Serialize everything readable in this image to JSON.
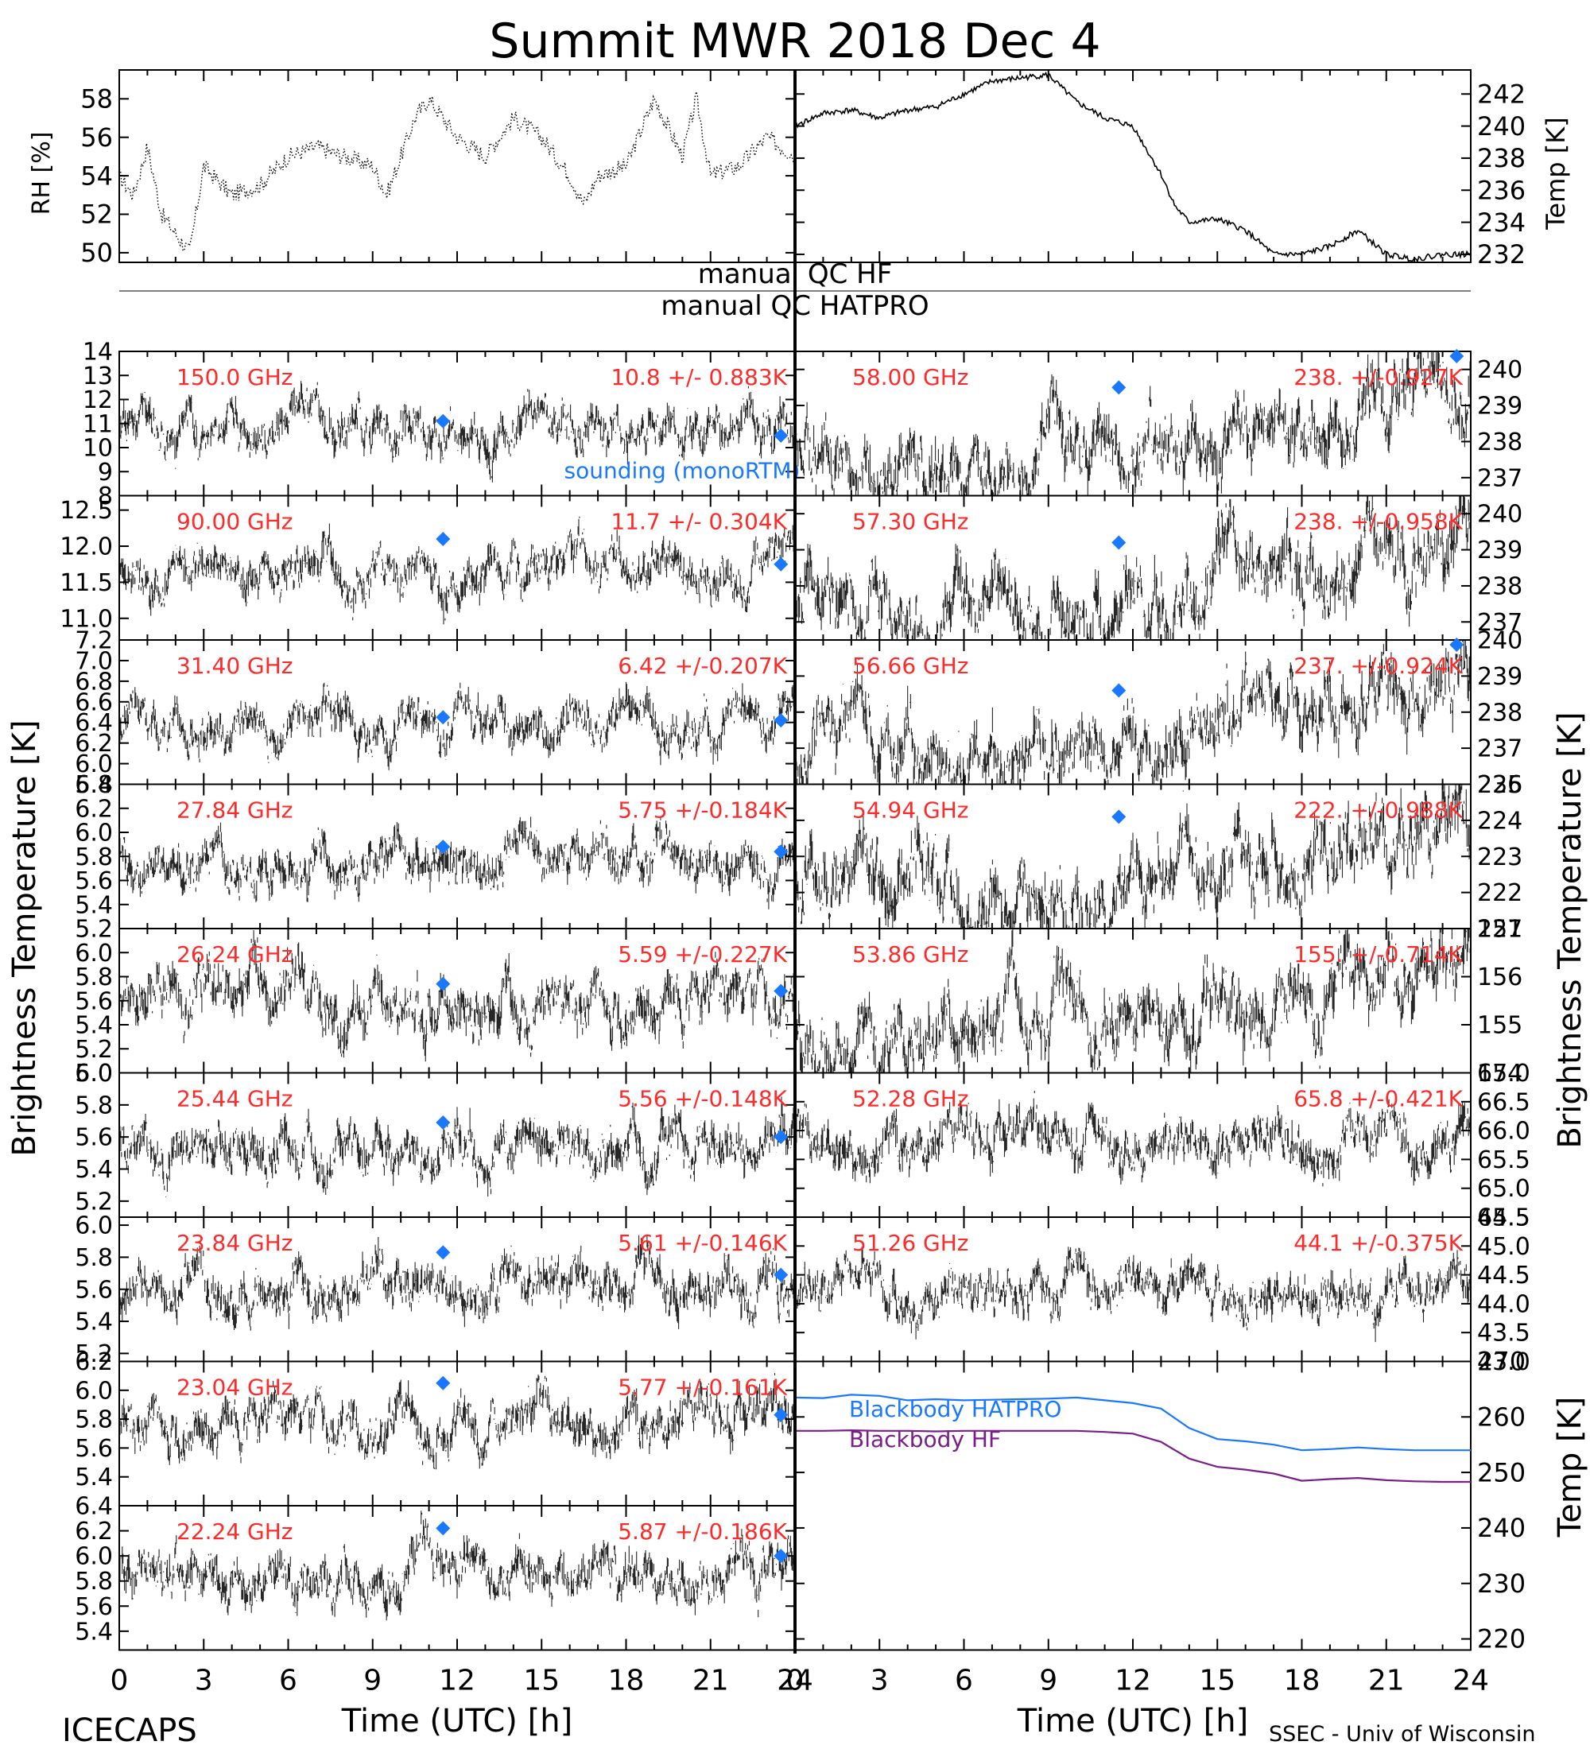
{
  "title": "Summit MWR 2018 Dec  4",
  "footer": {
    "left": "ICECAPS",
    "right": "SSEC - Univ of Wisconsin"
  },
  "colors": {
    "annotation": "#ff2a2a",
    "sounding": "#1a78ff",
    "blackbody_hatpro": "#1a78ff",
    "blackbody_hf": "#7a1f8a",
    "trace": "#000000"
  },
  "labels": {
    "rh_axis": "RH [%]",
    "temp_axis": "Temp [K]",
    "tb_axis_left": "Brightness Temperature [K]",
    "tb_axis_right": "Brightness Temperature [K]",
    "bb_temp_axis": "Temp [K]",
    "qc_hf": "manual QC HF",
    "qc_hatpro": "manual QC HATPRO",
    "sounding": "sounding (monoRTM)",
    "xlabel": "Time (UTC) [h]",
    "xticks": [
      "0",
      "3",
      "6",
      "9",
      "12",
      "15",
      "18",
      "21",
      "24"
    ]
  },
  "chart_data": [
    {
      "type": "scatter",
      "panel": "surface-rh",
      "ylabel": "RH [%]",
      "xlim": [
        0,
        24
      ],
      "ylim": [
        49.5,
        59.5
      ],
      "yticks": [
        50,
        52,
        54,
        56,
        58
      ],
      "x": [
        0,
        0.5,
        1,
        1.5,
        2,
        2.5,
        3,
        4,
        5,
        6,
        7,
        8,
        9,
        9.5,
        10,
        10.5,
        11,
        12,
        13,
        14,
        15,
        16,
        16.5,
        17,
        18,
        19,
        19.5,
        20,
        20.5,
        21,
        22,
        23,
        24
      ],
      "values": [
        54,
        53,
        55.5,
        52,
        51,
        50,
        54.5,
        53,
        53.5,
        55,
        55.5,
        55,
        54.5,
        53,
        55,
        57,
        58,
        56,
        55,
        57,
        56,
        54,
        52.5,
        54,
        54.5,
        58,
        56.5,
        55,
        58,
        54,
        54.5,
        56,
        55
      ]
    },
    {
      "type": "line",
      "panel": "surface-temp",
      "ylabel": "Temp [K]",
      "xlim": [
        0,
        24
      ],
      "ylim": [
        231.5,
        243.5
      ],
      "yticks": [
        232,
        234,
        236,
        238,
        240,
        242
      ],
      "x": [
        0,
        1,
        2,
        3,
        4,
        5,
        6,
        7,
        8,
        9,
        10,
        11,
        12,
        12.5,
        13,
        13.5,
        14,
        15,
        16,
        17,
        18,
        19,
        20,
        21,
        22,
        23,
        24
      ],
      "values": [
        240,
        240.8,
        241,
        240.5,
        241,
        241.2,
        242,
        242.8,
        243,
        243.2,
        241.5,
        240.5,
        240,
        238.5,
        237,
        235,
        234,
        234.2,
        233.5,
        232,
        232,
        232.5,
        233.5,
        232,
        231.7,
        232,
        232
      ]
    },
    {
      "type": "scatter",
      "panel": "tb-hf",
      "channel": "150.0 GHz",
      "stat": "10.8 +/- 0.883K",
      "xlim": [
        0,
        24
      ],
      "ylim": [
        8,
        14
      ],
      "yticks": [
        "8",
        "9",
        "10",
        "11",
        "12",
        "13",
        "14"
      ],
      "center": 10.8,
      "spread": 0.883,
      "trend": "flat",
      "sounding": [
        {
          "x": 11.5,
          "y": 11.1
        },
        {
          "x": 23.5,
          "y": 10.5
        }
      ],
      "note": "sounding (monoRTM)"
    },
    {
      "type": "scatter",
      "panel": "tb-hf",
      "channel": "90.00 GHz",
      "stat": "11.7 +/- 0.304K",
      "xlim": [
        0,
        24
      ],
      "ylim": [
        10.7,
        12.7
      ],
      "yticks": [
        "11.0",
        "11.5",
        "12.0",
        "12.5"
      ],
      "center": 11.7,
      "spread": 0.304,
      "trend": "flat",
      "sounding": [
        {
          "x": 11.5,
          "y": 12.1
        },
        {
          "x": 23.5,
          "y": 11.75
        }
      ]
    },
    {
      "type": "scatter",
      "panel": "tb-hf",
      "channel": "31.40 GHz",
      "stat": "6.42 +/-0.207K",
      "xlim": [
        0,
        24
      ],
      "ylim": [
        5.8,
        7.2
      ],
      "yticks": [
        "5.8",
        "6.0",
        "6.2",
        "6.4",
        "6.6",
        "6.8",
        "7.0",
        "7.2"
      ],
      "center": 6.42,
      "spread": 0.207,
      "trend": "flat",
      "sounding": [
        {
          "x": 11.5,
          "y": 6.45
        },
        {
          "x": 23.5,
          "y": 6.42
        }
      ]
    },
    {
      "type": "scatter",
      "panel": "tb-hf",
      "channel": "27.84 GHz",
      "stat": "5.75 +/-0.184K",
      "xlim": [
        0,
        24
      ],
      "ylim": [
        5.2,
        6.4
      ],
      "yticks": [
        "5.2",
        "5.4",
        "5.6",
        "5.8",
        "6.0",
        "6.2",
        "6.4"
      ],
      "center": 5.75,
      "spread": 0.184,
      "trend": "flat",
      "sounding": [
        {
          "x": 11.5,
          "y": 5.88
        },
        {
          "x": 23.5,
          "y": 5.84
        }
      ]
    },
    {
      "type": "scatter",
      "panel": "tb-hf",
      "channel": "26.24 GHz",
      "stat": "5.59 +/-0.227K",
      "xlim": [
        0,
        24
      ],
      "ylim": [
        5.0,
        6.2
      ],
      "yticks": [
        "5.0",
        "5.2",
        "5.4",
        "5.6",
        "5.8",
        "6.0"
      ],
      "center": 5.59,
      "spread": 0.227,
      "trend": "flat",
      "sounding": [
        {
          "x": 11.5,
          "y": 5.74
        },
        {
          "x": 23.5,
          "y": 5.68
        }
      ]
    },
    {
      "type": "scatter",
      "panel": "tb-hf",
      "channel": "25.44 GHz",
      "stat": "5.56 +/-0.148K",
      "xlim": [
        0,
        24
      ],
      "ylim": [
        5.1,
        6.0
      ],
      "yticks": [
        "5.2",
        "5.4",
        "5.6",
        "5.8",
        "6.0"
      ],
      "center": 5.56,
      "spread": 0.148,
      "trend": "flat",
      "sounding": [
        {
          "x": 11.5,
          "y": 5.69
        },
        {
          "x": 23.5,
          "y": 5.6
        }
      ]
    },
    {
      "type": "scatter",
      "panel": "tb-hf",
      "channel": "23.84 GHz",
      "stat": "5.61 +/-0.146K",
      "xlim": [
        0,
        24
      ],
      "ylim": [
        5.15,
        6.05
      ],
      "yticks": [
        "5.2",
        "5.4",
        "5.6",
        "5.8",
        "6.0"
      ],
      "center": 5.61,
      "spread": 0.146,
      "trend": "flat",
      "sounding": [
        {
          "x": 11.5,
          "y": 5.83
        },
        {
          "x": 23.5,
          "y": 5.69
        }
      ]
    },
    {
      "type": "scatter",
      "panel": "tb-hf",
      "channel": "23.04 GHz",
      "stat": "5.77 +/-0.161K",
      "xlim": [
        0,
        24
      ],
      "ylim": [
        5.2,
        6.2
      ],
      "yticks": [
        "5.4",
        "5.6",
        "5.8",
        "6.0",
        "6.2"
      ],
      "center": 5.77,
      "spread": 0.161,
      "trend": "flat",
      "sounding": [
        {
          "x": 11.5,
          "y": 6.05
        },
        {
          "x": 23.5,
          "y": 5.83
        }
      ]
    },
    {
      "type": "scatter",
      "panel": "tb-hf",
      "channel": "22.24 GHz",
      "stat": "5.87 +/-0.186K",
      "xlim": [
        0,
        24
      ],
      "ylim": [
        5.25,
        6.4
      ],
      "yticks": [
        "5.4",
        "5.6",
        "5.8",
        "6.0",
        "6.2",
        "6.4"
      ],
      "center": 5.87,
      "spread": 0.186,
      "trend": "flat",
      "sounding": [
        {
          "x": 11.5,
          "y": 6.22
        },
        {
          "x": 23.5,
          "y": 6.0
        }
      ]
    },
    {
      "type": "scatter",
      "panel": "tb-hatpro",
      "channel": "58.00 GHz",
      "stat": "238. +/-0.927K",
      "xlim": [
        0,
        24
      ],
      "ylim": [
        236.5,
        240.5
      ],
      "yticks": [
        "237",
        "238",
        "239",
        "240"
      ],
      "center": 238,
      "spread": 0.927,
      "trend": "rise-late",
      "sounding": [
        {
          "x": 11.5,
          "y": 239.5
        },
        {
          "x": 23.5,
          "y": 240.5
        }
      ]
    },
    {
      "type": "scatter",
      "panel": "tb-hatpro",
      "channel": "57.30 GHz",
      "stat": "238. +/-0.958K",
      "xlim": [
        0,
        24
      ],
      "ylim": [
        236.5,
        240.5
      ],
      "yticks": [
        "237",
        "238",
        "239",
        "240"
      ],
      "center": 238,
      "spread": 0.958,
      "trend": "rise-late",
      "sounding": [
        {
          "x": 11.5,
          "y": 239.2
        }
      ]
    },
    {
      "type": "scatter",
      "panel": "tb-hatpro",
      "channel": "56.66 GHz",
      "stat": "237. +/-0.924K",
      "xlim": [
        0,
        24
      ],
      "ylim": [
        236,
        240
      ],
      "yticks": [
        "236",
        "237",
        "238",
        "239",
        "240"
      ],
      "center": 237.5,
      "spread": 0.924,
      "trend": "rise-late",
      "sounding": [
        {
          "x": 11.5,
          "y": 238.6
        },
        {
          "x": 23.5,
          "y": 240
        }
      ]
    },
    {
      "type": "scatter",
      "panel": "tb-hatpro",
      "channel": "54.94 GHz",
      "stat": "222. +/-0.988K",
      "xlim": [
        0,
        24
      ],
      "ylim": [
        221,
        225
      ],
      "yticks": [
        "221",
        "222",
        "223",
        "224",
        "225"
      ],
      "center": 222.5,
      "spread": 0.988,
      "trend": "rise-late",
      "sounding": [
        {
          "x": 11.5,
          "y": 224.1
        }
      ]
    },
    {
      "type": "scatter",
      "panel": "tb-hatpro",
      "channel": "53.86 GHz",
      "stat": "155. +/-0.714K",
      "xlim": [
        0,
        24
      ],
      "ylim": [
        154,
        157
      ],
      "yticks": [
        "154",
        "155",
        "156",
        "157"
      ],
      "center": 155.2,
      "spread": 0.714,
      "trend": "rise-late"
    },
    {
      "type": "scatter",
      "panel": "tb-hatpro",
      "channel": "52.28 GHz",
      "stat": "65.8 +/-0.421K",
      "xlim": [
        0,
        24
      ],
      "ylim": [
        64.5,
        67.0
      ],
      "yticks": [
        "64.5",
        "65.0",
        "65.5",
        "66.0",
        "66.5",
        "67.0"
      ],
      "center": 65.8,
      "spread": 0.421,
      "trend": "slight-rise"
    },
    {
      "type": "scatter",
      "panel": "tb-hatpro",
      "channel": "51.26 GHz",
      "stat": "44.1 +/-0.375K",
      "xlim": [
        0,
        24
      ],
      "ylim": [
        43.0,
        45.5
      ],
      "yticks": [
        "43.0",
        "43.5",
        "44.0",
        "44.5",
        "45.0",
        "45.5"
      ],
      "center": 44.1,
      "spread": 0.375,
      "trend": "flat"
    },
    {
      "type": "line",
      "panel": "blackbody",
      "ylabel": "Temp [K]",
      "xlim": [
        0,
        24
      ],
      "ylim": [
        218,
        270
      ],
      "yticks": [
        "220",
        "230",
        "240",
        "250",
        "260",
        "270"
      ],
      "x": [
        0,
        1,
        2,
        3,
        4,
        5,
        6,
        7,
        8,
        9,
        10,
        11,
        12,
        13,
        14,
        15,
        16,
        17,
        18,
        19,
        20,
        21,
        22,
        23,
        24
      ],
      "series": [
        {
          "name": "Blackbody HATPRO",
          "values": [
            263.5,
            263.4,
            264,
            263.8,
            263,
            263.2,
            263,
            263.1,
            263.2,
            263.3,
            263.5,
            263,
            262.5,
            261.5,
            258,
            256,
            255.6,
            255,
            254,
            254.2,
            254.5,
            254.2,
            254,
            254,
            254
          ]
        },
        {
          "name": "Blackbody HF",
          "values": [
            257.5,
            257.5,
            257.6,
            257.5,
            257.5,
            257.4,
            257.5,
            257.5,
            257.5,
            257.5,
            257.5,
            257.3,
            257,
            255.5,
            252.5,
            251,
            250.5,
            249.8,
            248.5,
            248.8,
            249,
            248.6,
            248.4,
            248.3,
            248.3
          ]
        }
      ]
    }
  ]
}
